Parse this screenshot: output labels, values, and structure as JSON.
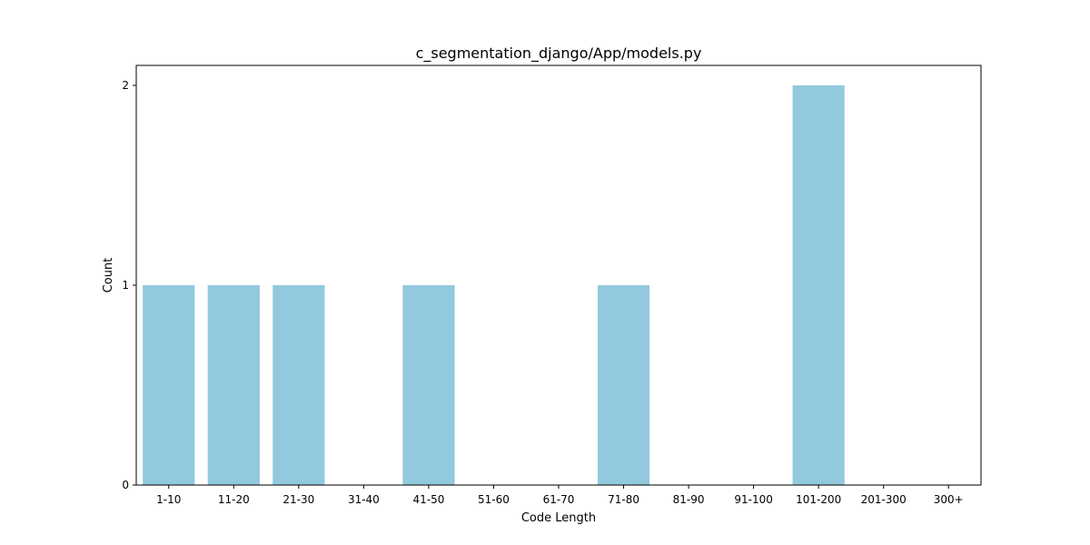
{
  "chart_data": {
    "type": "bar",
    "title": "c_segmentation_django/App/models.py",
    "xlabel": "Code Length",
    "ylabel": "Count",
    "categories": [
      "1-10",
      "11-20",
      "21-30",
      "31-40",
      "41-50",
      "51-60",
      "61-70",
      "71-80",
      "81-90",
      "91-100",
      "101-200",
      "201-300",
      "300+"
    ],
    "values": [
      1,
      1,
      1,
      0,
      1,
      0,
      0,
      1,
      0,
      0,
      2,
      0,
      0
    ],
    "ylim": [
      0,
      2.1
    ],
    "yticks": [
      0,
      1,
      2
    ],
    "grid": false,
    "bar_color": "#92c9de"
  }
}
